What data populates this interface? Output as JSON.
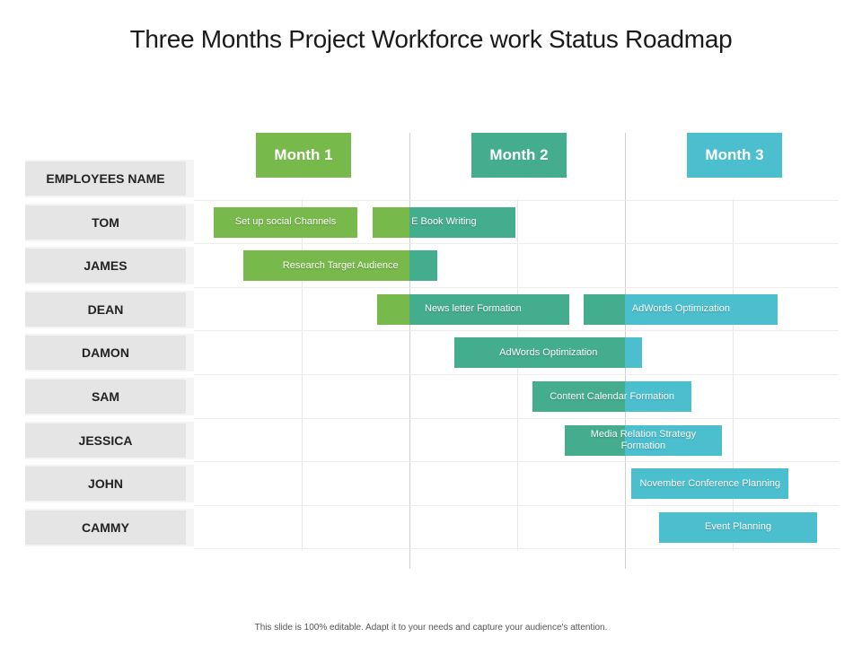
{
  "title": "Three Months Project Workforce work Status Roadmap",
  "footer": "This slide is 100% editable. Adapt it to your needs and capture your audience's attention.",
  "colors": {
    "month1": "#77b94a",
    "month2": "#44ad8e",
    "month3": "#4cbfcf",
    "row_label": "#e6e5e5"
  },
  "chart_data": {
    "type": "gantt",
    "title": "Three Months Project Workforce work Status Roadmap",
    "header_label": "EMPLOYEES NAME",
    "months": [
      "Month 1",
      "Month 2",
      "Month 3"
    ],
    "x_range": [
      0,
      3
    ],
    "employees": [
      "TOM",
      "JAMES",
      "DEAN",
      "DAMON",
      "SAM",
      "JESSICA",
      "JOHN",
      "CAMMY"
    ],
    "tasks": [
      {
        "employee": "TOM",
        "label": "Set up social  Channels",
        "start": 0.09,
        "end": 0.76
      },
      {
        "employee": "TOM",
        "label": "E Book Writing",
        "start": 0.83,
        "end": 1.49
      },
      {
        "employee": "JAMES",
        "label": "Research Target Audience",
        "start": 0.23,
        "end": 1.13
      },
      {
        "employee": "DEAN",
        "label": "News letter Formation",
        "start": 0.85,
        "end": 1.74
      },
      {
        "employee": "DEAN",
        "label": "AdWords Optimization",
        "start": 1.81,
        "end": 2.71
      },
      {
        "employee": "DAMON",
        "label": "AdWords Optimization",
        "start": 1.21,
        "end": 2.08
      },
      {
        "employee": "SAM",
        "label": "Content Calendar Formation",
        "start": 1.57,
        "end": 2.31
      },
      {
        "employee": "JESSICA",
        "label": "Media Relation  Strategy Formation",
        "start": 1.72,
        "end": 2.45
      },
      {
        "employee": "JOHN",
        "label": "November Conference Planning",
        "start": 2.03,
        "end": 2.76
      },
      {
        "employee": "CAMMY",
        "label": "Event Planning",
        "start": 2.16,
        "end": 2.89
      }
    ]
  }
}
